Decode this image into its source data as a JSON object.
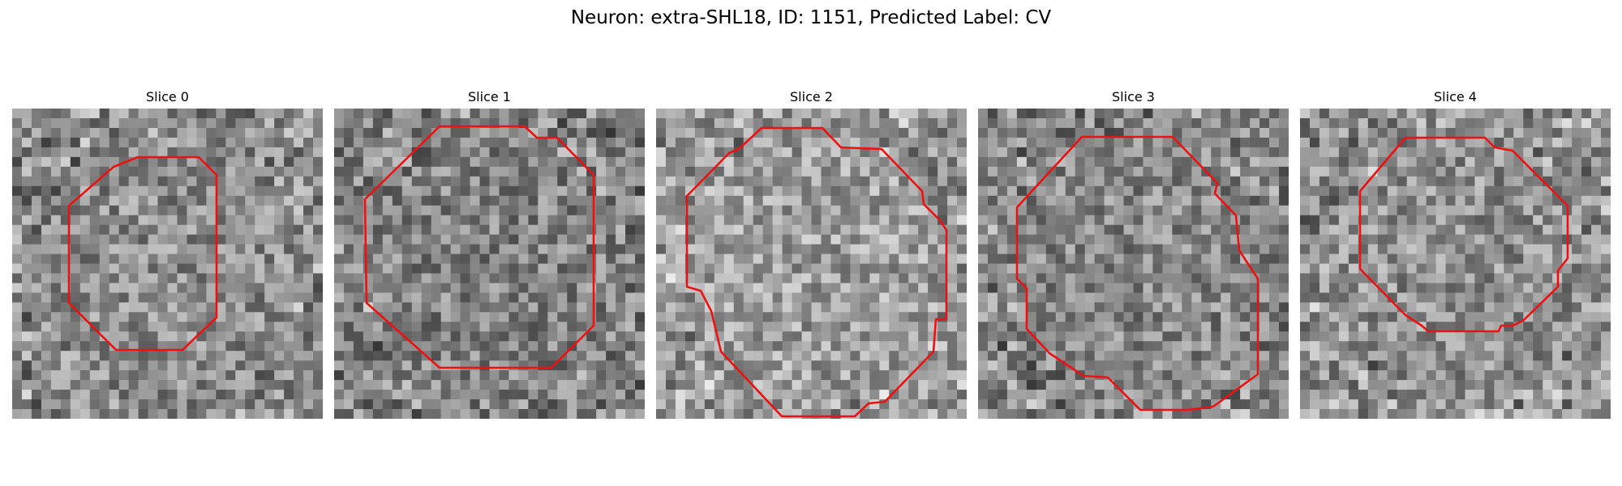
{
  "figure": {
    "title": "Neuron: extra-SHL18, ID: 1151, Predicted Label: CV"
  },
  "panels": [
    {
      "title": "Slice 0"
    },
    {
      "title": "Slice 1"
    },
    {
      "title": "Slice 2"
    },
    {
      "title": "Slice 3"
    },
    {
      "title": "Slice 4"
    }
  ],
  "colors": {
    "contour": "#ee1111",
    "colormap": "grayscale"
  }
}
